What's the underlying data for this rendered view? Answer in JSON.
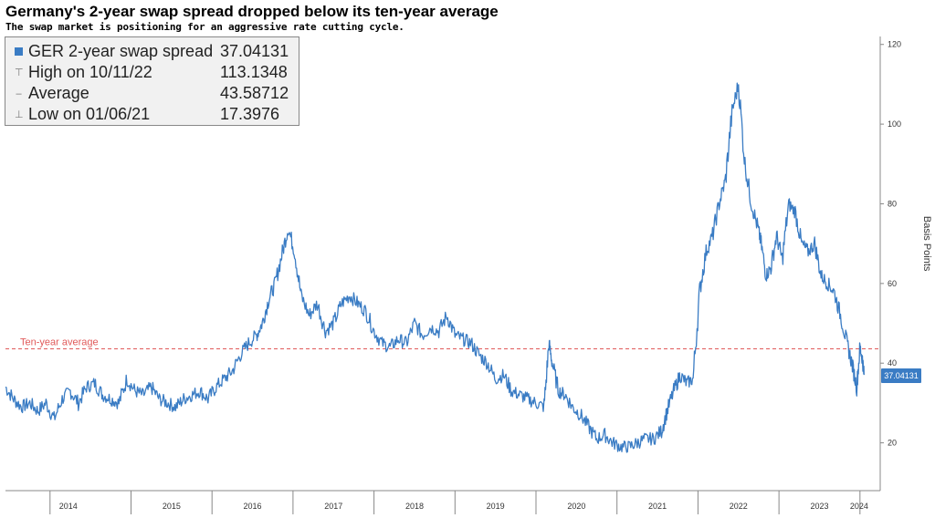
{
  "title": "Germany's 2-year swap spread dropped below its ten-year average",
  "subtitle": "The swap market is positioning for an aggressive rate cutting cycle.",
  "legend": {
    "rows": [
      {
        "label": "GER 2-year swap spread",
        "value": "37.04131",
        "marker": "swatch"
      },
      {
        "label": "High on 10/11/22",
        "value": "113.1348",
        "marker": "T"
      },
      {
        "label": "Average",
        "value": "43.58712",
        "marker": "-"
      },
      {
        "label": "Low on 01/06/21",
        "value": "17.3976",
        "marker": "⊥"
      }
    ]
  },
  "colors": {
    "series": "#3a7cc4",
    "average": "#e05a5a",
    "axis": "#888888"
  },
  "chart_data": {
    "type": "line",
    "title": "Germany's 2-year swap spread dropped below its ten-year average",
    "ylabel": "Basis Points",
    "ylim": [
      8,
      122
    ],
    "yticks": [
      20,
      40,
      60,
      80,
      100,
      120
    ],
    "xlim": [
      2013.45,
      2024.25
    ],
    "xtick_labels": [
      "2014",
      "2015",
      "2016",
      "2017",
      "2018",
      "2019",
      "2020",
      "2021",
      "2022",
      "2023",
      "2024"
    ],
    "y_axis_side": "right",
    "grid": false,
    "series": [
      {
        "name": "GER 2-year swap spread",
        "last_value": "37.04131",
        "x": [
          2013.45,
          2013.55,
          2013.65,
          2013.75,
          2013.85,
          2013.95,
          2014.05,
          2014.15,
          2014.25,
          2014.35,
          2014.45,
          2014.55,
          2014.65,
          2014.75,
          2014.85,
          2014.95,
          2015.05,
          2015.15,
          2015.25,
          2015.35,
          2015.45,
          2015.55,
          2015.65,
          2015.75,
          2015.85,
          2015.95,
          2016.05,
          2016.15,
          2016.25,
          2016.35,
          2016.45,
          2016.55,
          2016.62,
          2016.7,
          2016.78,
          2016.86,
          2016.94,
          2017.02,
          2017.1,
          2017.2,
          2017.3,
          2017.4,
          2017.5,
          2017.6,
          2017.7,
          2017.8,
          2017.9,
          2018.0,
          2018.1,
          2018.2,
          2018.3,
          2018.4,
          2018.5,
          2018.6,
          2018.7,
          2018.8,
          2018.9,
          2019.0,
          2019.1,
          2019.2,
          2019.3,
          2019.4,
          2019.5,
          2019.6,
          2019.7,
          2019.8,
          2019.9,
          2020.0,
          2020.1,
          2020.16,
          2020.2,
          2020.28,
          2020.36,
          2020.45,
          2020.55,
          2020.65,
          2020.75,
          2020.85,
          2020.95,
          2021.05,
          2021.15,
          2021.25,
          2021.35,
          2021.45,
          2021.55,
          2021.62,
          2021.7,
          2021.78,
          2021.86,
          2021.94,
          2022.02,
          2022.1,
          2022.18,
          2022.26,
          2022.34,
          2022.42,
          2022.5,
          2022.58,
          2022.66,
          2022.74,
          2022.78,
          2022.84,
          2022.9,
          2022.97,
          2023.04,
          2023.12,
          2023.2,
          2023.28,
          2023.36,
          2023.44,
          2023.52,
          2023.6,
          2023.68,
          2023.76,
          2023.84,
          2023.9,
          2023.96,
          2024.0,
          2024.03,
          2024.05
        ],
        "values": [
          34,
          31,
          29,
          30,
          28,
          30,
          26,
          31,
          33,
          30,
          34,
          35,
          32,
          31,
          30,
          36,
          33,
          32,
          34,
          31,
          30,
          29,
          31,
          32,
          33,
          31,
          34,
          36,
          38,
          42,
          45,
          47,
          50,
          56,
          60,
          67,
          74,
          68,
          57,
          52,
          55,
          48,
          50,
          55,
          57,
          55,
          53,
          48,
          45,
          44,
          46,
          45,
          50,
          47,
          49,
          48,
          52,
          47,
          46,
          45,
          42,
          40,
          36,
          37,
          33,
          32,
          31,
          30,
          29,
          45,
          40,
          33,
          32,
          29,
          27,
          24,
          21,
          22,
          20,
          19,
          19,
          20,
          21,
          21,
          23,
          28,
          33,
          37,
          35,
          36,
          58,
          68,
          72,
          80,
          86,
          103,
          110,
          90,
          80,
          74,
          70,
          62,
          64,
          72,
          66,
          80,
          78,
          70,
          68,
          70,
          62,
          60,
          58,
          52,
          45,
          40,
          34,
          44,
          41,
          37.04
        ]
      }
    ],
    "annotations": [
      {
        "type": "hline",
        "y": 43.58712,
        "label": "Ten-year average",
        "style": "dashed"
      }
    ]
  }
}
